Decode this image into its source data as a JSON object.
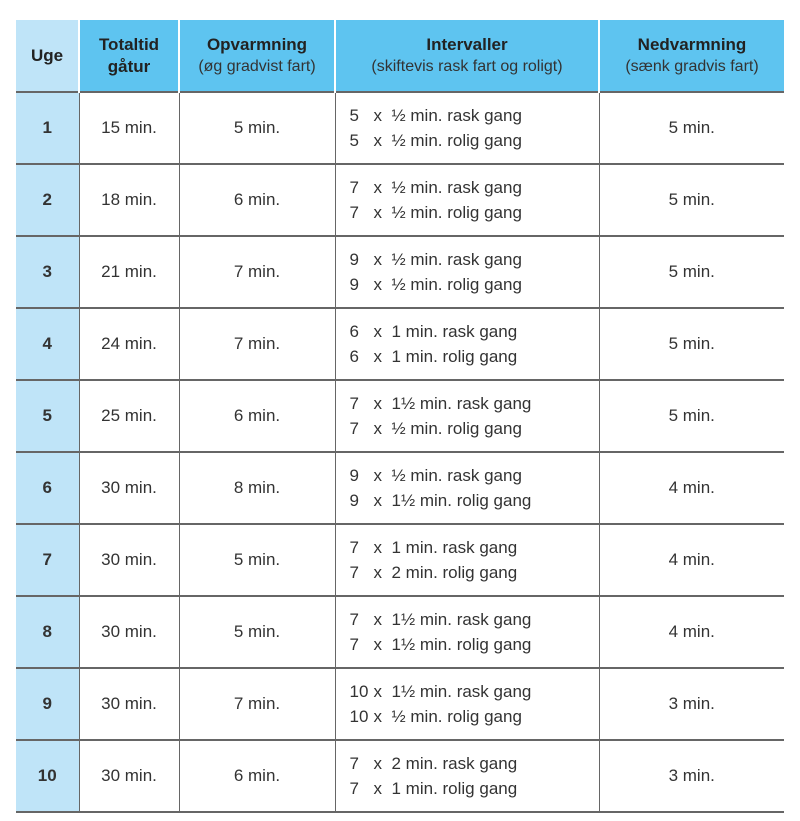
{
  "headers": [
    {
      "title": "Uge",
      "sub": ""
    },
    {
      "title": "Totaltid gåtur",
      "sub": ""
    },
    {
      "title": "Opvarmning",
      "sub": "(øg gradvist fart)"
    },
    {
      "title": "Intervaller",
      "sub": "(skiftevis rask fart og roligt)"
    },
    {
      "title": "Nedvarmning",
      "sub": "(sænk gradvis fart)"
    }
  ],
  "rows": [
    {
      "week": "1",
      "total": "15 min.",
      "warmup": "5 min.",
      "fast": {
        "n": "5",
        "x": "x",
        "t": "½ min. rask gang"
      },
      "slow": {
        "n": "5",
        "x": "x",
        "t": "½ min. rolig gang"
      },
      "cooldown": "5 min."
    },
    {
      "week": "2",
      "total": "18 min.",
      "warmup": "6 min.",
      "fast": {
        "n": "7",
        "x": "x",
        "t": "½ min. rask gang"
      },
      "slow": {
        "n": "7",
        "x": "x",
        "t": "½ min. rolig gang"
      },
      "cooldown": "5 min."
    },
    {
      "week": "3",
      "total": "21 min.",
      "warmup": "7 min.",
      "fast": {
        "n": "9",
        "x": "x",
        "t": "½ min. rask gang"
      },
      "slow": {
        "n": "9",
        "x": "x",
        "t": "½ min. rolig gang"
      },
      "cooldown": "5 min."
    },
    {
      "week": "4",
      "total": "24 min.",
      "warmup": "7 min.",
      "fast": {
        "n": "6",
        "x": "x",
        "t": "1 min. rask gang"
      },
      "slow": {
        "n": "6",
        "x": "x",
        "t": "1 min. rolig gang"
      },
      "cooldown": "5 min."
    },
    {
      "week": "5",
      "total": "25 min.",
      "warmup": "6 min.",
      "fast": {
        "n": "7",
        "x": "x",
        "t": "1½ min. rask gang"
      },
      "slow": {
        "n": "7",
        "x": "x",
        "t": "½ min. rolig gang"
      },
      "cooldown": "5 min."
    },
    {
      "week": "6",
      "total": "30 min.",
      "warmup": "8 min.",
      "fast": {
        "n": "9",
        "x": "x",
        "t": "½ min. rask gang"
      },
      "slow": {
        "n": "9",
        "x": "x",
        "t": "1½ min. rolig gang"
      },
      "cooldown": "4 min."
    },
    {
      "week": "7",
      "total": "30 min.",
      "warmup": "5 min.",
      "fast": {
        "n": "7",
        "x": "x",
        "t": "1 min. rask gang"
      },
      "slow": {
        "n": "7",
        "x": "x",
        "t": "2 min. rolig gang"
      },
      "cooldown": "4 min."
    },
    {
      "week": "8",
      "total": "30 min.",
      "warmup": "5 min.",
      "fast": {
        "n": "7",
        "x": "x",
        "t": "1½ min. rask gang"
      },
      "slow": {
        "n": "7",
        "x": "x",
        "t": "1½ min. rolig gang"
      },
      "cooldown": "4 min."
    },
    {
      "week": "9",
      "total": "30 min.",
      "warmup": "7 min.",
      "fast": {
        "n": "10",
        "x": "x",
        "t": "1½ min. rask gang"
      },
      "slow": {
        "n": "10",
        "x": "x",
        "t": "½ min. rolig gang"
      },
      "cooldown": "3 min."
    },
    {
      "week": "10",
      "total": "30 min.",
      "warmup": "6 min.",
      "fast": {
        "n": "7",
        "x": "x",
        "t": "2 min. rask gang"
      },
      "slow": {
        "n": "7",
        "x": "x",
        "t": "1 min. rolig gang"
      },
      "cooldown": "3 min."
    }
  ],
  "colors": {
    "header": "#5ec4f0",
    "week_column": "#bfe4f8",
    "border": "#666666"
  }
}
